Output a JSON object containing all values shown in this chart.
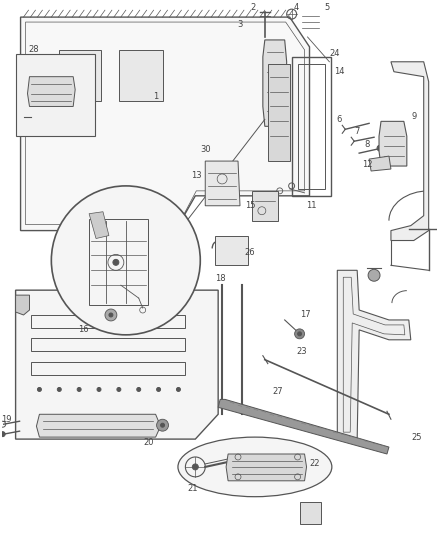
{
  "bg_color": "#ffffff",
  "lc": "#555555",
  "lbl": "#444444",
  "fig_w": 4.38,
  "fig_h": 5.33,
  "dpi": 100,
  "lw": 0.7
}
